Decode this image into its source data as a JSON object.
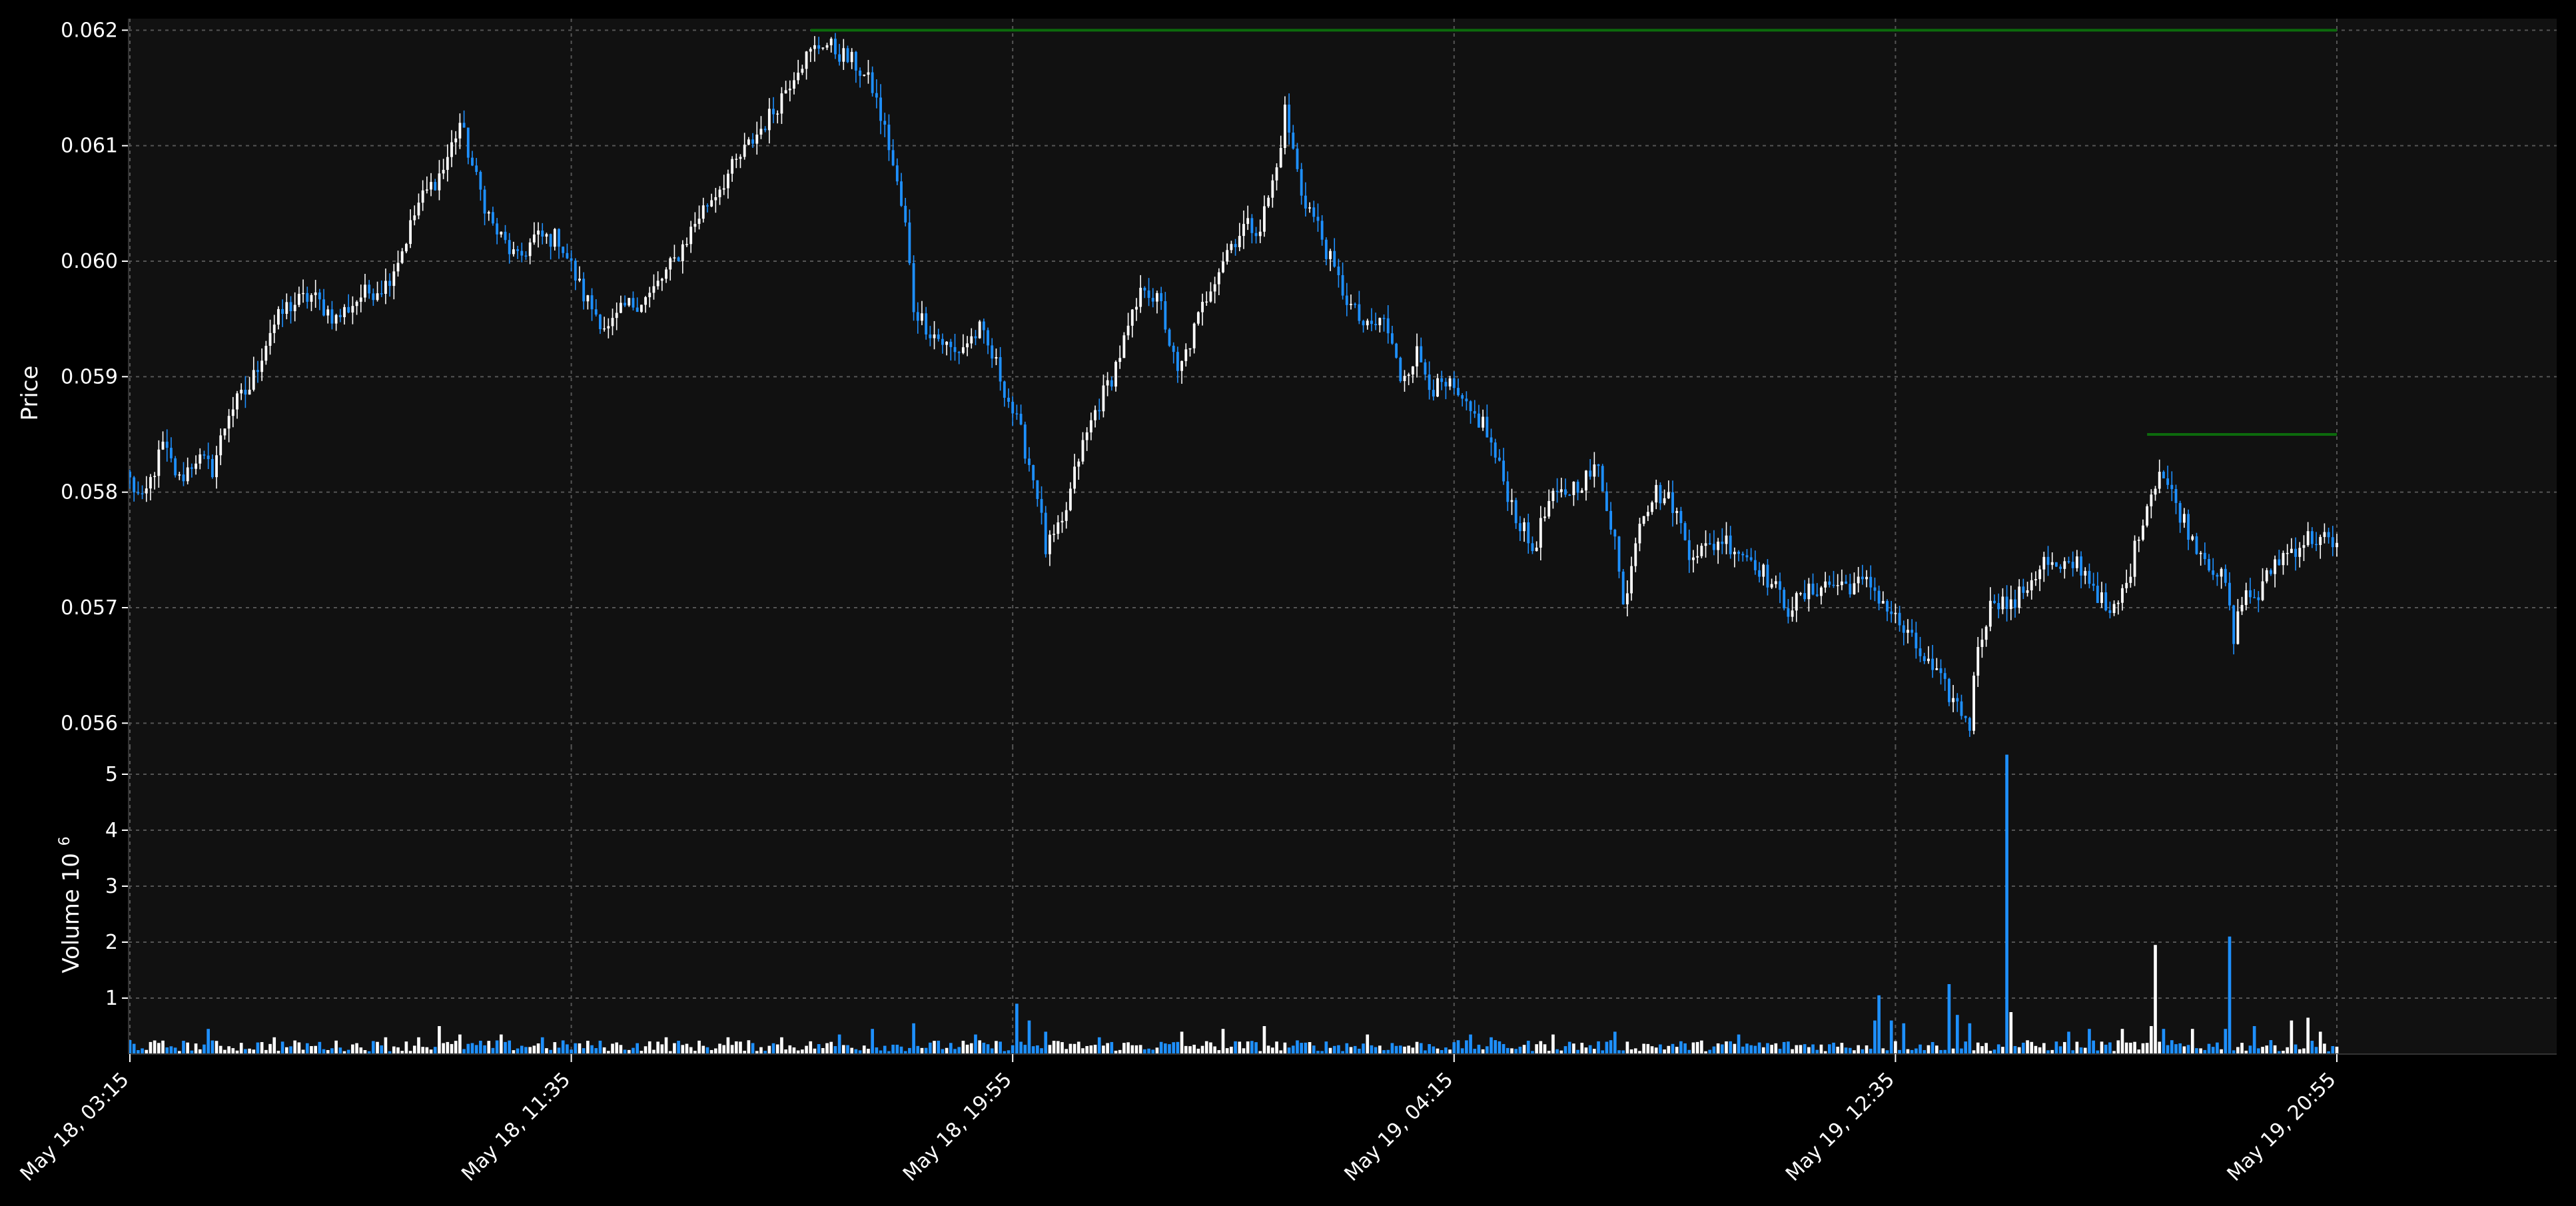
{
  "chart_data": [
    {
      "type": "candlestick",
      "panel": "price",
      "ylabel": "Price",
      "ylim": [
        0.0558,
        0.0621
      ],
      "yticks": [
        "0.056",
        "0.057",
        "0.058",
        "0.059",
        "0.060",
        "0.061",
        "0.062"
      ],
      "grid": true,
      "xticks": [
        "May 18, 03:15",
        "May 18, 11:35",
        "May 18, 19:55",
        "May 19, 04:15",
        "May 19, 12:35",
        "May 19, 20:55"
      ],
      "colors": {
        "up": "#ffffff",
        "down": "#1e90ff",
        "level_line": "#0c6b0c",
        "panel_bg": "#111111",
        "grid": "#555555"
      },
      "keypoints": [
        [
          0,
          0.0581
        ],
        [
          3,
          0.0579
        ],
        [
          8,
          0.0584
        ],
        [
          12,
          0.0581
        ],
        [
          16,
          0.0583
        ],
        [
          20,
          0.0582
        ],
        [
          24,
          0.0587
        ],
        [
          29,
          0.0589
        ],
        [
          34,
          0.0594
        ],
        [
          38,
          0.0596
        ],
        [
          44,
          0.0597
        ],
        [
          50,
          0.0595
        ],
        [
          56,
          0.0597
        ],
        [
          62,
          0.0598
        ],
        [
          66,
          0.0601
        ],
        [
          70,
          0.0605
        ],
        [
          76,
          0.0608
        ],
        [
          80,
          0.0612
        ],
        [
          84,
          0.0607
        ],
        [
          88,
          0.0603
        ],
        [
          94,
          0.06
        ],
        [
          98,
          0.0602
        ],
        [
          104,
          0.0602
        ],
        [
          110,
          0.0597
        ],
        [
          116,
          0.0594
        ],
        [
          120,
          0.0596
        ],
        [
          126,
          0.0597
        ],
        [
          132,
          0.06
        ],
        [
          138,
          0.0604
        ],
        [
          144,
          0.0607
        ],
        [
          150,
          0.061
        ],
        [
          156,
          0.0613
        ],
        [
          162,
          0.0617
        ],
        [
          168,
          0.0619
        ],
        [
          172,
          0.0618
        ],
        [
          176,
          0.0617
        ],
        [
          180,
          0.0615
        ],
        [
          184,
          0.061
        ],
        [
          188,
          0.0603
        ],
        [
          190,
          0.0596
        ],
        [
          194,
          0.0594
        ],
        [
          200,
          0.0592
        ],
        [
          206,
          0.0594
        ],
        [
          210,
          0.0591
        ],
        [
          216,
          0.0585
        ],
        [
          220,
          0.058
        ],
        [
          222,
          0.0575
        ],
        [
          226,
          0.0577
        ],
        [
          230,
          0.0583
        ],
        [
          234,
          0.0587
        ],
        [
          238,
          0.059
        ],
        [
          242,
          0.0594
        ],
        [
          246,
          0.0598
        ],
        [
          250,
          0.0596
        ],
        [
          254,
          0.059
        ],
        [
          258,
          0.0594
        ],
        [
          262,
          0.0598
        ],
        [
          266,
          0.0601
        ],
        [
          270,
          0.0603
        ],
        [
          274,
          0.0603
        ],
        [
          278,
          0.0608
        ],
        [
          280,
          0.0613
        ],
        [
          284,
          0.0606
        ],
        [
          288,
          0.0603
        ],
        [
          292,
          0.0599
        ],
        [
          296,
          0.0596
        ],
        [
          300,
          0.0594
        ],
        [
          304,
          0.0595
        ],
        [
          308,
          0.059
        ],
        [
          312,
          0.0592
        ],
        [
          316,
          0.0589
        ],
        [
          320,
          0.0589
        ],
        [
          324,
          0.0587
        ],
        [
          328,
          0.0586
        ],
        [
          332,
          0.0582
        ],
        [
          336,
          0.0578
        ],
        [
          340,
          0.0575
        ],
        [
          344,
          0.0579
        ],
        [
          348,
          0.058
        ],
        [
          352,
          0.0581
        ],
        [
          356,
          0.0582
        ],
        [
          360,
          0.0576
        ],
        [
          362,
          0.057
        ],
        [
          366,
          0.0578
        ],
        [
          370,
          0.058
        ],
        [
          374,
          0.0579
        ],
        [
          378,
          0.0575
        ],
        [
          382,
          0.0575
        ],
        [
          386,
          0.0576
        ],
        [
          390,
          0.0575
        ],
        [
          394,
          0.0574
        ],
        [
          398,
          0.0572
        ],
        [
          402,
          0.057
        ],
        [
          406,
          0.0571
        ],
        [
          410,
          0.0572
        ],
        [
          414,
          0.0572
        ],
        [
          418,
          0.0572
        ],
        [
          422,
          0.0572
        ],
        [
          426,
          0.057
        ],
        [
          430,
          0.0568
        ],
        [
          434,
          0.0566
        ],
        [
          438,
          0.0564
        ],
        [
          442,
          0.0562
        ],
        [
          446,
          0.056
        ],
        [
          448,
          0.0567
        ],
        [
          452,
          0.0571
        ],
        [
          456,
          0.057
        ],
        [
          460,
          0.0572
        ],
        [
          464,
          0.0574
        ],
        [
          468,
          0.0573
        ],
        [
          472,
          0.0574
        ],
        [
          476,
          0.0572
        ],
        [
          480,
          0.0569
        ],
        [
          484,
          0.0572
        ],
        [
          488,
          0.0578
        ],
        [
          492,
          0.0582
        ],
        [
          496,
          0.0579
        ],
        [
          500,
          0.0576
        ],
        [
          504,
          0.0574
        ],
        [
          508,
          0.0572
        ],
        [
          510,
          0.0567
        ],
        [
          512,
          0.0571
        ],
        [
          516,
          0.0571
        ],
        [
          520,
          0.0574
        ],
        [
          524,
          0.0575
        ],
        [
          528,
          0.0576
        ],
        [
          532,
          0.0576
        ],
        [
          534,
          0.0575
        ],
        [
          535,
          0.0575
        ]
      ],
      "volume_spikes": [
        [
          0,
          0.25
        ],
        [
          19,
          0.45
        ],
        [
          35,
          0.3
        ],
        [
          62,
          0.3
        ],
        [
          70,
          0.3
        ],
        [
          75,
          0.5
        ],
        [
          80,
          0.35
        ],
        [
          90,
          0.35
        ],
        [
          100,
          0.3
        ],
        [
          130,
          0.3
        ],
        [
          145,
          0.3
        ],
        [
          158,
          0.3
        ],
        [
          172,
          0.35
        ],
        [
          180,
          0.45
        ],
        [
          190,
          0.55
        ],
        [
          205,
          0.35
        ],
        [
          215,
          0.9
        ],
        [
          218,
          0.6
        ],
        [
          222,
          0.4
        ],
        [
          235,
          0.3
        ],
        [
          255,
          0.4
        ],
        [
          265,
          0.45
        ],
        [
          275,
          0.5
        ],
        [
          300,
          0.35
        ],
        [
          325,
          0.35
        ],
        [
          330,
          0.3
        ],
        [
          345,
          0.35
        ],
        [
          360,
          0.4
        ],
        [
          390,
          0.35
        ],
        [
          423,
          0.6
        ],
        [
          424,
          1.05
        ],
        [
          427,
          0.6
        ],
        [
          430,
          0.55
        ],
        [
          441,
          1.25
        ],
        [
          443,
          0.7
        ],
        [
          446,
          0.55
        ],
        [
          455,
          5.35
        ],
        [
          456,
          0.75
        ],
        [
          470,
          0.4
        ],
        [
          475,
          0.45
        ],
        [
          483,
          0.45
        ],
        [
          490,
          0.5
        ],
        [
          491,
          1.95
        ],
        [
          493,
          0.45
        ],
        [
          500,
          0.45
        ],
        [
          508,
          0.45
        ],
        [
          509,
          2.1
        ],
        [
          515,
          0.5
        ],
        [
          524,
          0.6
        ],
        [
          528,
          0.65
        ],
        [
          531,
          0.4
        ]
      ],
      "levels": [
        {
          "y": 0.062,
          "from_index": 165,
          "to_index": 535
        },
        {
          "y": 0.0585,
          "from_index": 489,
          "to_index": 535
        }
      ],
      "bars": 536
    },
    {
      "type": "bar",
      "panel": "volume",
      "ylabel": "Volume",
      "ylabel_exponent_base": "10",
      "ylabel_exponent": "6",
      "yticks": [
        "1",
        "2",
        "3",
        "4",
        "5"
      ],
      "ylim": [
        0,
        5.5
      ]
    }
  ],
  "labels": {
    "price_ylabel": "Price",
    "volume_ylabel": "Volume",
    "volume_exp_base": "10",
    "volume_exp": "6"
  }
}
